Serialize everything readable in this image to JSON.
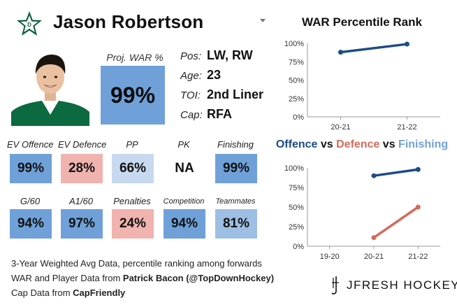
{
  "header": {
    "player_name": "Jason Robertson",
    "team_logo": "star-icon"
  },
  "proj_war": {
    "label": "Proj. WAR %",
    "value": "99%"
  },
  "info": [
    {
      "key": "Pos:",
      "value": "LW, RW"
    },
    {
      "key": "Age:",
      "value": "23"
    },
    {
      "key": "TOI:",
      "value": "2nd Liner"
    },
    {
      "key": "Cap:",
      "value": "RFA"
    }
  ],
  "stats_row1": [
    {
      "label": "EV Offence",
      "value": "99%",
      "color": "#6fa1d8"
    },
    {
      "label": "EV Defence",
      "value": "28%",
      "color": "#f0b3ae"
    },
    {
      "label": "PP",
      "value": "66%",
      "color": "#c7d9ee"
    },
    {
      "label": "PK",
      "value": "NA",
      "color": "#ffffff"
    },
    {
      "label": "Finishing",
      "value": "99%",
      "color": "#6fa1d8"
    }
  ],
  "stats_row2": [
    {
      "label": "G/60",
      "value": "94%",
      "color": "#6fa1d8"
    },
    {
      "label": "A1/60",
      "value": "97%",
      "color": "#6fa1d8"
    },
    {
      "label": "Penalties",
      "value": "24%",
      "color": "#f0b3ae"
    },
    {
      "label": "Competition",
      "value": "94%",
      "color": "#6fa1d8"
    },
    {
      "label": "Teammates",
      "value": "81%",
      "color": "#9dbfe3"
    }
  ],
  "footer": {
    "line1": "3-Year Weighted Avg Data, percentile ranking among forwards",
    "line2_prefix": "WAR and Player Data from ",
    "line2_source": "Patrick Bacon (@TopDownHockey)",
    "line3_prefix": "Cap Data from ",
    "line3_source": "CapFriendly"
  },
  "brand": {
    "text": "JFRESH HOCKEY"
  },
  "chart_data": [
    {
      "type": "line",
      "title": "WAR Percentile Rank",
      "x": [
        "20-21",
        "21-22"
      ],
      "series": [
        {
          "values": [
            88,
            99
          ],
          "color": "#1c4d85"
        }
      ],
      "ylim": [
        0,
        100
      ],
      "yticks": [
        "0%",
        "25%",
        "50%",
        "75%",
        "100%"
      ],
      "grid": false
    },
    {
      "type": "line",
      "title_parts": [
        "Offence",
        " vs ",
        "Defence",
        " vs ",
        "Finishing"
      ],
      "x": [
        "19-20",
        "20-21",
        "21-22"
      ],
      "series": [
        {
          "name": "Offence",
          "values": [
            null,
            90,
            98
          ],
          "color": "#1c4d85"
        },
        {
          "name": "Defence",
          "values": [
            null,
            11,
            50
          ],
          "color": "#d56a5b"
        },
        {
          "name": "Finishing",
          "values": [
            null,
            null,
            null
          ],
          "color": "#6fa1d8"
        }
      ],
      "ylim": [
        0,
        100
      ],
      "yticks": [
        "0%",
        "25%",
        "50%",
        "75%",
        "100%"
      ],
      "grid": false
    }
  ]
}
